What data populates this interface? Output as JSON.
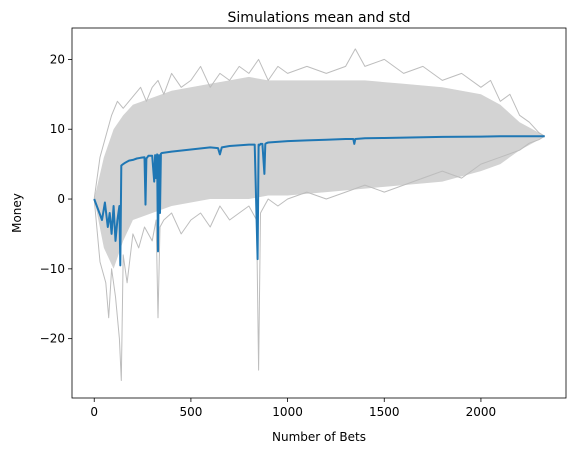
{
  "chart_data": {
    "type": "line",
    "title": "Simulations mean and std",
    "xlabel": "Number of Bets",
    "ylabel": "Money",
    "xlim": [
      -115,
      2440
    ],
    "ylim": [
      -28.5,
      24.5
    ],
    "xticks": [
      0,
      500,
      1000,
      1500,
      2000
    ],
    "yticks": [
      -20,
      -10,
      0,
      10,
      20
    ],
    "xtick_labels": [
      "0",
      "500",
      "1000",
      "1500",
      "2000"
    ],
    "ytick_labels": [
      "−20",
      "−10",
      "0",
      "10",
      "20"
    ],
    "grid": false,
    "colors": {
      "mean_line": "#1f77b4",
      "band_fill": "#d3d3d3",
      "band_edge": "#bdbdbd"
    },
    "series": [
      {
        "role": "mean",
        "x": [
          0,
          20,
          40,
          55,
          70,
          80,
          90,
          100,
          110,
          120,
          130,
          135,
          140,
          150,
          160,
          180,
          200,
          220,
          240,
          260,
          265,
          270,
          275,
          280,
          300,
          310,
          315,
          320,
          325,
          330,
          335,
          340,
          345,
          350,
          400,
          500,
          600,
          640,
          650,
          660,
          700,
          800,
          830,
          845,
          850,
          855,
          860,
          870,
          880,
          885,
          890,
          900,
          1000,
          1100,
          1200,
          1300,
          1340,
          1345,
          1350,
          1400,
          1500,
          1600,
          1700,
          1800,
          2000,
          2100,
          2200,
          2300,
          2330
        ],
        "values": [
          0,
          -1.5,
          -3,
          -0.5,
          -4,
          -2,
          -5,
          -1,
          -6,
          -3,
          -1,
          -9.5,
          4.8,
          5,
          5.2,
          5.5,
          5.6,
          5.8,
          5.9,
          6,
          -0.8,
          5.8,
          6,
          6.2,
          6.2,
          2.5,
          6.3,
          3,
          6.4,
          -7.5,
          6.3,
          -2,
          6.5,
          6.6,
          6.8,
          7.1,
          7.4,
          7.3,
          6.4,
          7.4,
          7.6,
          7.8,
          7.8,
          -8.6,
          7.8,
          7.7,
          7.9,
          7.9,
          3.6,
          7.9,
          8,
          8.1,
          8.3,
          8.4,
          8.5,
          8.6,
          8.6,
          7.9,
          8.6,
          8.7,
          8.75,
          8.8,
          8.85,
          8.9,
          8.95,
          9,
          9,
          9,
          9
        ]
      },
      {
        "role": "upper",
        "x": [
          0,
          50,
          100,
          150,
          200,
          300,
          400,
          500,
          600,
          700,
          800,
          900,
          1000,
          1200,
          1400,
          1600,
          1800,
          2000,
          2100,
          2200,
          2300,
          2330
        ],
        "values": [
          0,
          6,
          10,
          12,
          13.5,
          14.5,
          15.5,
          16,
          16.5,
          17,
          17.5,
          17,
          17,
          17,
          17,
          16.5,
          16,
          15,
          13.5,
          11,
          9.5,
          9
        ]
      },
      {
        "role": "lower",
        "x": [
          0,
          50,
          100,
          150,
          200,
          300,
          400,
          500,
          600,
          700,
          800,
          900,
          1000,
          1200,
          1400,
          1600,
          1800,
          2000,
          2100,
          2200,
          2300,
          2330
        ],
        "values": [
          0,
          -7,
          -10,
          -6,
          -3,
          -2,
          -1,
          -0.5,
          0,
          0,
          0,
          0.5,
          0.5,
          1,
          1.5,
          2,
          2.5,
          4,
          5,
          7,
          8.5,
          9
        ]
      },
      {
        "role": "upper_edge",
        "x": [
          0,
          30,
          60,
          90,
          120,
          150,
          180,
          210,
          240,
          270,
          300,
          330,
          360,
          400,
          450,
          500,
          550,
          600,
          650,
          700,
          750,
          800,
          850,
          900,
          950,
          1000,
          1100,
          1200,
          1300,
          1350,
          1400,
          1500,
          1600,
          1700,
          1800,
          1900,
          2000,
          2050,
          2100,
          2150,
          2200,
          2250,
          2300,
          2330
        ],
        "values": [
          0,
          6,
          9,
          12,
          14,
          13,
          14,
          15,
          16,
          14,
          16,
          17,
          15,
          18,
          16,
          17,
          19,
          16,
          18,
          17,
          19,
          18,
          20,
          17,
          19,
          18,
          19,
          18,
          19,
          21.5,
          19,
          20,
          18,
          19,
          17,
          18,
          16,
          17,
          14,
          15,
          12,
          11,
          9.5,
          9
        ]
      },
      {
        "role": "lower_edge",
        "x": [
          0,
          30,
          60,
          75,
          90,
          110,
          130,
          140,
          150,
          170,
          200,
          230,
          260,
          300,
          320,
          330,
          340,
          360,
          400,
          450,
          500,
          550,
          600,
          650,
          700,
          750,
          800,
          840,
          850,
          860,
          900,
          950,
          1000,
          1100,
          1200,
          1300,
          1400,
          1500,
          1600,
          1700,
          1800,
          1900,
          2000,
          2100,
          2200,
          2250,
          2300,
          2330
        ],
        "values": [
          0,
          -9,
          -12,
          -17,
          -10,
          -14,
          -20,
          -26,
          -8,
          -12,
          -5,
          -7,
          -4,
          -6,
          -3,
          -17,
          -4,
          -3,
          -2,
          -5,
          -3,
          -2,
          -4,
          -1,
          -3,
          -2,
          -1,
          -3,
          -24.5,
          -2,
          0,
          -1,
          0,
          1,
          0,
          1,
          2,
          1,
          2,
          3,
          4,
          3,
          5,
          6,
          7,
          8,
          8.5,
          9
        ]
      }
    ]
  }
}
